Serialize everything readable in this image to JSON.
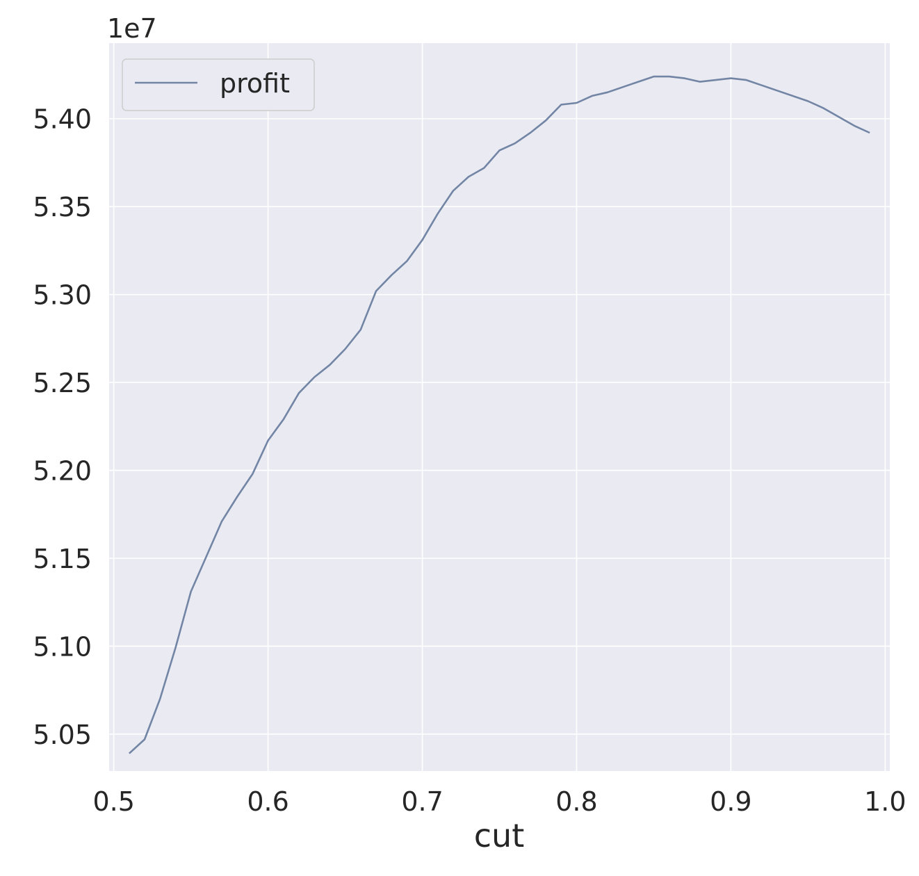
{
  "chart_data": {
    "type": "line",
    "title": "",
    "xlabel": "cut",
    "ylabel": "",
    "offset_label": "1e7",
    "xlim": [
      0.497,
      1.003
    ],
    "ylim": [
      5.029,
      5.443
    ],
    "xticks": [
      0.5,
      0.6,
      0.7,
      0.8,
      0.9,
      1.0
    ],
    "xtick_labels": [
      "0.5",
      "0.6",
      "0.7",
      "0.8",
      "0.9",
      "1.0"
    ],
    "yticks": [
      5.05,
      5.1,
      5.15,
      5.2,
      5.25,
      5.3,
      5.35,
      5.4
    ],
    "ytick_labels": [
      "5.05",
      "5.10",
      "5.15",
      "5.20",
      "5.25",
      "5.30",
      "5.35",
      "5.40"
    ],
    "grid": true,
    "legend_position": "top-left",
    "colors": {
      "background": "#eaeaf2",
      "grid": "#ffffff",
      "line": "#7285a5",
      "text": "#262626"
    },
    "series": [
      {
        "name": "profit",
        "x": [
          0.51,
          0.52,
          0.53,
          0.54,
          0.55,
          0.56,
          0.57,
          0.58,
          0.59,
          0.6,
          0.61,
          0.62,
          0.63,
          0.64,
          0.65,
          0.66,
          0.67,
          0.68,
          0.69,
          0.7,
          0.71,
          0.72,
          0.73,
          0.74,
          0.75,
          0.76,
          0.77,
          0.78,
          0.79,
          0.8,
          0.81,
          0.82,
          0.83,
          0.84,
          0.85,
          0.86,
          0.87,
          0.88,
          0.89,
          0.9,
          0.91,
          0.92,
          0.93,
          0.94,
          0.95,
          0.96,
          0.97,
          0.98,
          0.99
        ],
        "y": [
          5.039,
          5.047,
          5.07,
          5.099,
          5.131,
          5.151,
          5.171,
          5.185,
          5.198,
          5.217,
          5.229,
          5.244,
          5.253,
          5.26,
          5.269,
          5.28,
          5.302,
          5.311,
          5.319,
          5.331,
          5.346,
          5.359,
          5.367,
          5.372,
          5.382,
          5.386,
          5.392,
          5.399,
          5.408,
          5.409,
          5.413,
          5.415,
          5.418,
          5.421,
          5.424,
          5.424,
          5.423,
          5.421,
          5.422,
          5.423,
          5.422,
          5.419,
          5.416,
          5.413,
          5.41,
          5.406,
          5.401,
          5.396,
          5.392
        ]
      }
    ]
  }
}
